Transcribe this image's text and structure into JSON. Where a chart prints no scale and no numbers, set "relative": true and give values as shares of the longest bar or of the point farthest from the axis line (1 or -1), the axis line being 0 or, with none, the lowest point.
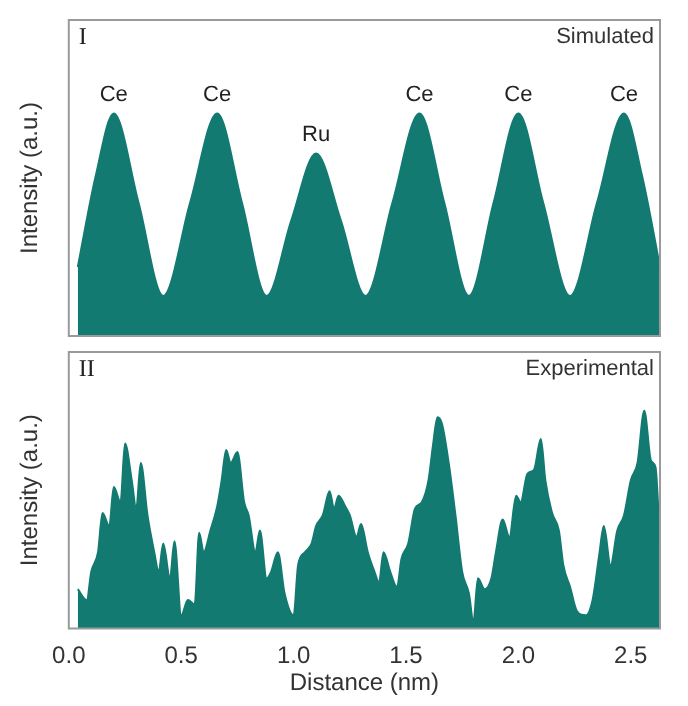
{
  "chart_data": [
    {
      "type": "area",
      "relative": true,
      "ylabel": "Intensity (a.u.)",
      "xlim": [
        0,
        2.63
      ],
      "grid": false,
      "legend": false,
      "annotations": [
        "I",
        "Simulated",
        {
          "text": "Ce",
          "x": 0.2,
          "y": 1
        },
        {
          "text": "Ce",
          "x": 0.66,
          "y": 1
        },
        {
          "text": "Ru",
          "x": 1.1,
          "y": 0.82
        },
        {
          "text": "Ce",
          "x": 1.56,
          "y": 1
        },
        {
          "text": "Ce",
          "x": 2.0,
          "y": 1
        },
        {
          "text": "Ce",
          "x": 2.47,
          "y": 1
        }
      ],
      "series": [
        {
          "color": "#137a72",
          "x": [
            0.04,
            0.12,
            0.2,
            0.31,
            0.42,
            0.54,
            0.66,
            0.77,
            0.88,
            0.99,
            1.1,
            1.21,
            1.32,
            1.44,
            1.56,
            1.67,
            1.78,
            1.89,
            2.0,
            2.11,
            2.23,
            2.35,
            2.47,
            2.55,
            2.63
          ],
          "values": [
            0.31,
            0.72,
            1,
            0.6,
            0.18,
            0.6,
            1,
            0.6,
            0.18,
            0.52,
            0.82,
            0.52,
            0.18,
            0.6,
            1,
            0.6,
            0.18,
            0.6,
            1,
            0.6,
            0.18,
            0.6,
            1,
            0.72,
            0.31
          ]
        }
      ]
    },
    {
      "type": "area",
      "relative": true,
      "ylabel": "Intensity (a.u.)",
      "xlabel": "Distance (nm)",
      "xlim": [
        0,
        2.63
      ],
      "xticks": [
        {
          "value": 0,
          "label": "0.0"
        },
        0.5,
        {
          "value": 1,
          "label": "1.0"
        },
        1.5,
        {
          "value": 2,
          "label": "2.0"
        },
        2.5
      ],
      "grid": false,
      "legend": false,
      "annotations": [
        "II",
        "Experimental"
      ],
      "series": [
        {
          "color": "#137a72",
          "x": [
            0.04,
            0.08,
            0.1,
            0.13,
            0.15,
            0.18,
            0.2,
            0.23,
            0.25,
            0.28,
            0.3,
            0.32,
            0.35,
            0.38,
            0.4,
            0.42,
            0.45,
            0.47,
            0.5,
            0.53,
            0.56,
            0.58,
            0.6,
            0.63,
            0.66,
            0.68,
            0.7,
            0.72,
            0.75,
            0.78,
            0.8,
            0.83,
            0.85,
            0.88,
            0.9,
            0.93,
            0.96,
            1.0,
            1.02,
            1.05,
            1.08,
            1.1,
            1.13,
            1.16,
            1.18,
            1.2,
            1.23,
            1.25,
            1.28,
            1.3,
            1.33,
            1.36,
            1.38,
            1.4,
            1.43,
            1.46,
            1.48,
            1.51,
            1.54,
            1.57,
            1.6,
            1.62,
            1.64,
            1.66,
            1.69,
            1.72,
            1.75,
            1.78,
            1.8,
            1.82,
            1.85,
            1.88,
            1.9,
            1.93,
            1.96,
            1.99,
            2.01,
            2.04,
            2.07,
            2.1,
            2.12,
            2.15,
            2.18,
            2.2,
            2.23,
            2.26,
            2.3,
            2.33,
            2.36,
            2.38,
            2.41,
            2.44,
            2.47,
            2.5,
            2.53,
            2.56,
            2.59,
            2.61,
            2.63
          ],
          "values": [
            0.18,
            0.13,
            0.26,
            0.35,
            0.53,
            0.47,
            0.65,
            0.58,
            0.85,
            0.68,
            0.55,
            0.76,
            0.52,
            0.35,
            0.26,
            0.39,
            0.23,
            0.4,
            0.06,
            0.13,
            0.11,
            0.44,
            0.35,
            0.45,
            0.56,
            0.68,
            0.82,
            0.76,
            0.81,
            0.58,
            0.52,
            0.35,
            0.45,
            0.23,
            0.26,
            0.35,
            0.16,
            0.06,
            0.29,
            0.35,
            0.39,
            0.47,
            0.52,
            0.63,
            0.55,
            0.61,
            0.56,
            0.52,
            0.42,
            0.48,
            0.35,
            0.26,
            0.21,
            0.35,
            0.26,
            0.19,
            0.32,
            0.39,
            0.55,
            0.58,
            0.68,
            0.84,
            0.97,
            0.94,
            0.76,
            0.52,
            0.26,
            0.16,
            0.03,
            0.23,
            0.18,
            0.23,
            0.35,
            0.5,
            0.42,
            0.61,
            0.58,
            0.71,
            0.73,
            0.87,
            0.68,
            0.53,
            0.45,
            0.29,
            0.19,
            0.08,
            0.06,
            0.13,
            0.34,
            0.47,
            0.29,
            0.45,
            0.52,
            0.68,
            0.76,
            1,
            0.77,
            0.74,
            0.39
          ]
        }
      ]
    }
  ]
}
